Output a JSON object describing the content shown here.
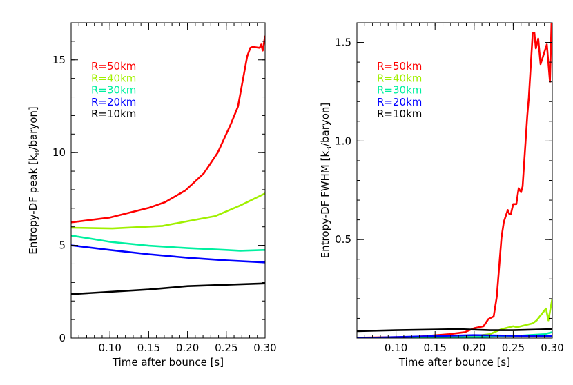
{
  "chart_data": [
    {
      "type": "line",
      "xlabel": "Time after bounce [s]",
      "ylabel_prefix": "Entropy-DF peak [k",
      "ylabel_sub": "B",
      "ylabel_suffix": "/baryon]",
      "xlim": [
        0.05,
        0.3
      ],
      "ylim": [
        0,
        17
      ],
      "xticks": [
        0.1,
        0.15,
        0.2,
        0.25,
        0.3
      ],
      "xtick_labels": [
        "0.10",
        "0.15",
        "0.20",
        "0.25",
        "0.30"
      ],
      "yticks": [
        0,
        5,
        10,
        15
      ],
      "ytick_labels": [
        "0",
        "5",
        "10",
        "15"
      ],
      "x_minor": 0.01,
      "y_minor": 1,
      "grid": false,
      "legend": "top-left",
      "series": [
        {
          "name": "R=50km",
          "color": "#ff0000",
          "x": [
            0.05,
            0.1,
            0.15,
            0.171,
            0.197,
            0.221,
            0.239,
            0.256,
            0.265,
            0.277,
            0.281,
            0.284,
            0.293,
            0.295,
            0.297,
            0.3
          ],
          "y": [
            6.24,
            6.5,
            7.02,
            7.33,
            7.95,
            8.88,
            10.0,
            11.55,
            12.48,
            15.2,
            15.65,
            15.7,
            15.65,
            15.83,
            15.5,
            16.3
          ]
        },
        {
          "name": "R=40km",
          "color": "#a0f000",
          "x": [
            0.05,
            0.103,
            0.168,
            0.2,
            0.236,
            0.268,
            0.3
          ],
          "y": [
            5.95,
            5.91,
            6.05,
            6.3,
            6.58,
            7.15,
            7.8
          ]
        },
        {
          "name": "R=30km",
          "color": "#00f0a0",
          "x": [
            0.05,
            0.1,
            0.15,
            0.2,
            0.25,
            0.268,
            0.3
          ],
          "y": [
            5.53,
            5.19,
            4.98,
            4.85,
            4.75,
            4.71,
            4.75
          ]
        },
        {
          "name": "R=20km",
          "color": "#0000ff",
          "x": [
            0.05,
            0.1,
            0.15,
            0.2,
            0.25,
            0.3
          ],
          "y": [
            5.0,
            4.75,
            4.52,
            4.33,
            4.19,
            4.08
          ]
        },
        {
          "name": "R=10km",
          "color": "#000000",
          "x": [
            0.05,
            0.15,
            0.2,
            0.3
          ],
          "y": [
            2.37,
            2.62,
            2.8,
            2.95
          ]
        }
      ]
    },
    {
      "type": "line",
      "xlabel": "Time after bounce [s]",
      "ylabel_prefix": "Entropy-DF FWHM [k",
      "ylabel_sub": "B",
      "ylabel_suffix": "/baryon]",
      "xlim": [
        0.05,
        0.3
      ],
      "ylim": [
        0,
        1.6
      ],
      "xticks": [
        0.1,
        0.15,
        0.2,
        0.25,
        0.3
      ],
      "xtick_labels": [
        "0.10",
        "0.15",
        "0.20",
        "0.25",
        "0.30"
      ],
      "yticks": [
        0.5,
        1.0,
        1.5
      ],
      "ytick_labels": [
        "0.5",
        "1.0",
        "1.5"
      ],
      "x_minor": 0.01,
      "y_minor": 0.1,
      "grid": false,
      "legend": "top-left",
      "series": [
        {
          "name": "R=50km",
          "color": "#ff0000",
          "x": [
            0.05,
            0.124,
            0.168,
            0.188,
            0.2,
            0.212,
            0.218,
            0.225,
            0.229,
            0.235,
            0.238,
            0.243,
            0.245,
            0.247,
            0.25,
            0.254,
            0.257,
            0.26,
            0.262,
            0.268,
            0.27,
            0.275,
            0.277,
            0.279,
            0.282,
            0.285,
            0.293,
            0.297,
            0.299,
            0.3
          ],
          "y": [
            0.002,
            0.006,
            0.02,
            0.03,
            0.05,
            0.06,
            0.096,
            0.11,
            0.21,
            0.51,
            0.59,
            0.65,
            0.63,
            0.63,
            0.68,
            0.68,
            0.76,
            0.74,
            0.77,
            1.13,
            1.22,
            1.55,
            1.55,
            1.47,
            1.52,
            1.39,
            1.49,
            1.3,
            1.6,
            1.6
          ]
        },
        {
          "name": "R=40km",
          "color": "#a0f000",
          "x": [
            0.05,
            0.15,
            0.2,
            0.22,
            0.235,
            0.25,
            0.255,
            0.265,
            0.275,
            0.28,
            0.288,
            0.292,
            0.295,
            0.3
          ],
          "y": [
            0.002,
            0.004,
            0.01,
            0.02,
            0.045,
            0.06,
            0.055,
            0.065,
            0.075,
            0.09,
            0.13,
            0.15,
            0.09,
            0.2
          ]
        },
        {
          "name": "R=30km",
          "color": "#00f0a0",
          "x": [
            0.05,
            0.15,
            0.2,
            0.25,
            0.29,
            0.3
          ],
          "y": [
            0.0,
            0.002,
            0.005,
            0.01,
            0.02,
            0.03
          ]
        },
        {
          "name": "R=20km",
          "color": "#0000ff",
          "x": [
            0.05,
            0.1,
            0.15,
            0.2,
            0.25,
            0.3
          ],
          "y": [
            0.0,
            0.005,
            0.01,
            0.015,
            0.012,
            0.01
          ]
        },
        {
          "name": "R=10km",
          "color": "#000000",
          "x": [
            0.05,
            0.1,
            0.18,
            0.22,
            0.25,
            0.3
          ],
          "y": [
            0.035,
            0.04,
            0.045,
            0.04,
            0.04,
            0.045
          ]
        }
      ]
    }
  ]
}
